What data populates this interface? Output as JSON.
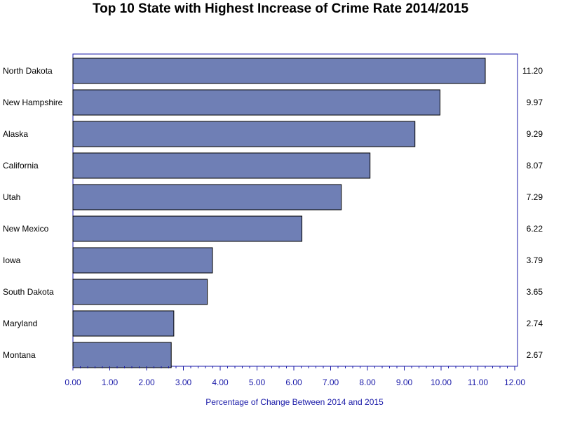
{
  "chart_data": {
    "type": "bar",
    "orientation": "horizontal",
    "title": "Top 10 State with Highest Increase of Crime Rate 2014/2015",
    "xlabel": "Percentage of Change Between 2014 and 2015",
    "ylabel": "",
    "categories": [
      "North Dakota",
      "New Hampshire",
      "Alaska",
      "California",
      "Utah",
      "New Mexico",
      "Iowa",
      "South Dakota",
      "Maryland",
      "Montana"
    ],
    "values": [
      11.2,
      9.97,
      9.29,
      8.07,
      7.29,
      6.22,
      3.79,
      3.65,
      2.74,
      2.67
    ],
    "value_labels": [
      "11.20",
      "9.97",
      "9.29",
      "8.07",
      "7.29",
      "6.22",
      "3.79",
      "3.65",
      "2.74",
      "2.67"
    ],
    "xlim": [
      0,
      12
    ],
    "x_ticks": [
      "0.00",
      "1.00",
      "2.00",
      "3.00",
      "4.00",
      "5.00",
      "6.00",
      "7.00",
      "8.00",
      "9.00",
      "10.00",
      "11.00",
      "12.00"
    ],
    "grid": false,
    "legend": "none",
    "colors": {
      "bar_fill": "#6f7fb5",
      "bar_stroke": "#000000",
      "axis": "#1a1aa8",
      "tick_text": "#1a1aa8",
      "frame": "#1a1aa8"
    }
  }
}
